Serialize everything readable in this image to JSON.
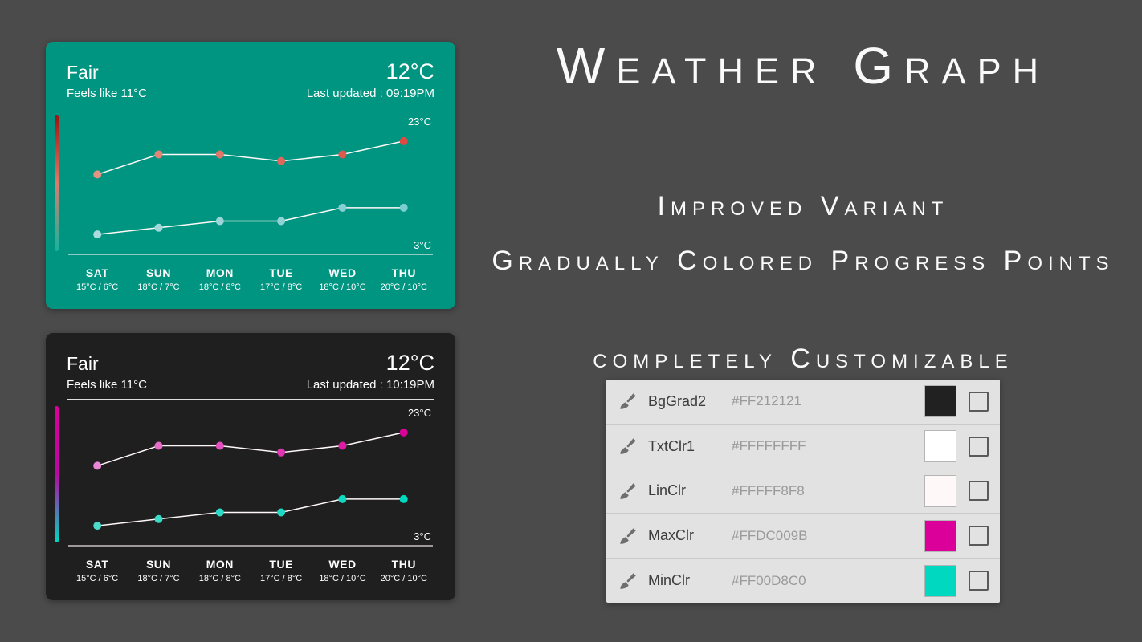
{
  "page": {
    "background": "#4B4B4B"
  },
  "hero": {
    "title": "Weather Graph",
    "subtitle1": "Improved Variant",
    "subtitle2": "Gradually Colored Progress Points",
    "subtitle3": "completely Customizable"
  },
  "cards": [
    {
      "theme": "teal",
      "bg": "#009580",
      "condition": "Fair",
      "temp": "12°C",
      "feels_like": "Feels like 11°C",
      "last_updated": "Last updated : 09:19PM",
      "max_label": "23°C",
      "min_label": "3°C",
      "text_color": "#FFFFFF",
      "line_color": "#FFF8F8",
      "bar_gradient": [
        "#9E1111",
        "#DD7A6C",
        "#15B4A1"
      ],
      "dot_colors": {
        "max": [
          "#E59382",
          "#DD4A41"
        ],
        "min": [
          "#ACDBDE",
          "#7CCDD1"
        ]
      }
    },
    {
      "theme": "dark",
      "bg": "#1F1F1F",
      "condition": "Fair",
      "temp": "12°C",
      "feels_like": "Feels like 11°C",
      "last_updated": "Last updated : 10:19PM",
      "max_label": "23°C",
      "min_label": "3°C",
      "text_color": "#FFFFFF",
      "line_color": "#FFF8F8",
      "bar_gradient": [
        "#DC009B",
        "#B808A3",
        "#00D8C0"
      ],
      "dot_colors": {
        "max": [
          "#E887D6",
          "#DC009B"
        ],
        "min": [
          "#4ADCC9",
          "#00D8C0"
        ]
      }
    }
  ],
  "chart_data": {
    "type": "line",
    "categories": [
      "SAT",
      "SUN",
      "MON",
      "TUE",
      "WED",
      "THU"
    ],
    "series": [
      {
        "name": "max",
        "values": [
          15,
          18,
          18,
          17,
          18,
          20
        ]
      },
      {
        "name": "min",
        "values": [
          6,
          7,
          8,
          8,
          10,
          10
        ]
      }
    ],
    "ylim": [
      3,
      23
    ],
    "ymax_label": "23°C",
    "ymin_label": "3°C",
    "day_temps": [
      "15°C / 6°C",
      "18°C / 7°C",
      "18°C / 8°C",
      "17°C / 8°C",
      "18°C / 10°C",
      "20°C / 10°C"
    ]
  },
  "settings": {
    "rows": [
      {
        "label": "BgGrad2",
        "hex": "#FF212121",
        "swatch": "#212121"
      },
      {
        "label": "TxtClr1",
        "hex": "#FFFFFFFF",
        "swatch": "#FFFFFF"
      },
      {
        "label": "LinClr",
        "hex": "#FFFFF8F8",
        "swatch": "#FFF8F8"
      },
      {
        "label": "MaxClr",
        "hex": "#FFDC009B",
        "swatch": "#DC009B"
      },
      {
        "label": "MinClr",
        "hex": "#FF00D8C0",
        "swatch": "#00D8C0"
      }
    ]
  }
}
